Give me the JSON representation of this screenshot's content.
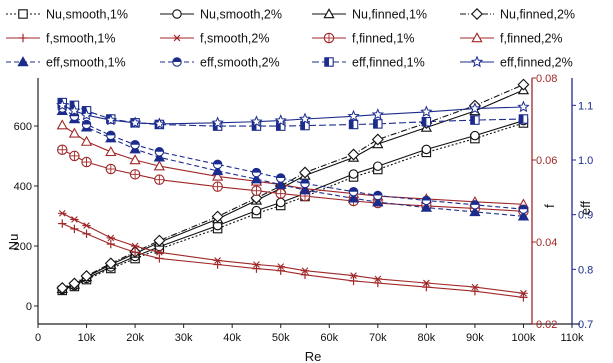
{
  "chart_data": {
    "type": "line",
    "xlabel": "Re",
    "x_ticks": [
      "0",
      "10k",
      "20k",
      "30k",
      "40k",
      "50k",
      "60k",
      "70k",
      "80k",
      "90k",
      "100k",
      "110k"
    ],
    "xlim": [
      0,
      110000
    ],
    "axes": {
      "Nu": {
        "label": "Nu",
        "lim": [
          -60,
          760
        ],
        "ticks": [
          "0",
          "200",
          "400",
          "600"
        ],
        "color": "#222222"
      },
      "f": {
        "label": "f",
        "lim": [
          0.02,
          0.08
        ],
        "ticks": [
          "0.02",
          "0.04",
          "0.06",
          "0.08"
        ],
        "color": "#a02828"
      },
      "eff": {
        "label": "eff",
        "lim": [
          0.7,
          1.15
        ],
        "ticks": [
          "0.7",
          "0.8",
          "0.9",
          "1.0",
          "1.1"
        ],
        "color": "#1c2c8c"
      }
    },
    "legend_position": "top",
    "series": [
      {
        "name": "Nu,smooth,1%",
        "axis": "Nu",
        "color": "#111111",
        "dash": "2,2",
        "marker": "square-open",
        "x": [
          5000,
          7500,
          10000,
          15000,
          20000,
          25000,
          37000,
          45000,
          50000,
          55000,
          65000,
          70000,
          80000,
          90000,
          100000
        ],
        "y": [
          52,
          65,
          88,
          125,
          158,
          190,
          258,
          308,
          335,
          365,
          430,
          455,
          512,
          558,
          610
        ]
      },
      {
        "name": "Nu,smooth,2%",
        "axis": "Nu",
        "color": "#111111",
        "dash": "",
        "marker": "circle-open",
        "x": [
          5000,
          7500,
          10000,
          15000,
          20000,
          25000,
          37000,
          45000,
          50000,
          55000,
          65000,
          70000,
          80000,
          90000,
          100000
        ],
        "y": [
          55,
          68,
          92,
          130,
          165,
          198,
          268,
          318,
          345,
          375,
          440,
          466,
          522,
          568,
          618
        ]
      },
      {
        "name": "Nu,finned,1%",
        "axis": "Nu",
        "color": "#111111",
        "dash": "",
        "marker": "triangle-open",
        "x": [
          5000,
          7500,
          10000,
          15000,
          20000,
          25000,
          37000,
          45000,
          50000,
          55000,
          65000,
          70000,
          80000,
          90000,
          100000
        ],
        "y": [
          58,
          72,
          97,
          138,
          175,
          212,
          290,
          352,
          392,
          435,
          495,
          540,
          595,
          650,
          720
        ]
      },
      {
        "name": "Nu,finned,2%",
        "axis": "Nu",
        "color": "#111111",
        "dash": "6,2,1,2",
        "marker": "diamond-open",
        "x": [
          5000,
          7500,
          10000,
          15000,
          20000,
          25000,
          37000,
          45000,
          50000,
          55000,
          65000,
          70000,
          80000,
          90000,
          100000
        ],
        "y": [
          60,
          75,
          100,
          142,
          180,
          218,
          298,
          360,
          400,
          445,
          505,
          555,
          610,
          668,
          738
        ]
      },
      {
        "name": "f,smooth,1%",
        "axis": "f",
        "color": "#a02828",
        "dash": "",
        "marker": "plus",
        "x": [
          5000,
          7500,
          10000,
          15000,
          20000,
          25000,
          37000,
          45000,
          50000,
          55000,
          65000,
          70000,
          80000,
          90000,
          100000
        ],
        "y": [
          0.0445,
          0.0432,
          0.042,
          0.0395,
          0.0375,
          0.036,
          0.0345,
          0.0335,
          0.033,
          0.032,
          0.0305,
          0.03,
          0.029,
          0.028,
          0.0265
        ]
      },
      {
        "name": "f,smooth,2%",
        "axis": "f",
        "color": "#a02828",
        "dash": "",
        "marker": "asterisk",
        "x": [
          5000,
          7500,
          10000,
          15000,
          20000,
          25000,
          37000,
          45000,
          50000,
          55000,
          65000,
          70000,
          80000,
          90000,
          100000
        ],
        "y": [
          0.047,
          0.0455,
          0.044,
          0.041,
          0.039,
          0.0375,
          0.0355,
          0.0345,
          0.034,
          0.033,
          0.0318,
          0.031,
          0.03,
          0.029,
          0.0275
        ]
      },
      {
        "name": "f,finned,1%",
        "axis": "f",
        "color": "#a02828",
        "dash": "",
        "marker": "circle-plus",
        "x": [
          5000,
          7500,
          10000,
          15000,
          20000,
          25000,
          37000,
          45000,
          50000,
          55000,
          65000,
          70000,
          80000,
          90000,
          100000
        ],
        "y": [
          0.0625,
          0.061,
          0.0595,
          0.0578,
          0.0565,
          0.0552,
          0.0535,
          0.0525,
          0.0518,
          0.0512,
          0.05,
          0.0495,
          0.0488,
          0.0482,
          0.0475
        ]
      },
      {
        "name": "f,finned,2%",
        "axis": "f",
        "color": "#a02828",
        "dash": "",
        "marker": "triangle-open",
        "x": [
          5000,
          7500,
          10000,
          15000,
          20000,
          25000,
          37000,
          45000,
          50000,
          55000,
          65000,
          70000,
          80000,
          90000,
          100000
        ],
        "y": [
          0.0685,
          0.0665,
          0.0645,
          0.062,
          0.06,
          0.0585,
          0.056,
          0.0548,
          0.054,
          0.053,
          0.0518,
          0.0512,
          0.0505,
          0.0498,
          0.0492
        ]
      },
      {
        "name": "eff,smooth,1%",
        "axis": "eff",
        "color": "#1c2c8c",
        "dash": "5,3",
        "marker": "triangle-filled",
        "x": [
          5000,
          7500,
          10000,
          15000,
          20000,
          25000,
          37000,
          45000,
          50000,
          55000,
          65000,
          70000,
          80000,
          90000,
          100000
        ],
        "y": [
          1.09,
          1.075,
          1.06,
          1.04,
          1.02,
          1.005,
          0.98,
          0.965,
          0.955,
          0.945,
          0.93,
          0.923,
          0.913,
          0.905,
          0.897
        ]
      },
      {
        "name": "eff,smooth,2%",
        "axis": "eff",
        "color": "#1c2c8c",
        "dash": "5,3",
        "marker": "circle-half",
        "x": [
          5000,
          7500,
          10000,
          15000,
          20000,
          25000,
          37000,
          45000,
          50000,
          55000,
          65000,
          70000,
          80000,
          90000,
          100000
        ],
        "y": [
          1.095,
          1.08,
          1.065,
          1.045,
          1.028,
          1.015,
          0.992,
          0.977,
          0.967,
          0.957,
          0.942,
          0.935,
          0.926,
          0.918,
          0.91
        ]
      },
      {
        "name": "eff,finned,1%",
        "axis": "eff",
        "color": "#1c2c8c",
        "dash": "7,3",
        "marker": "square-half",
        "x": [
          5000,
          7500,
          10000,
          15000,
          20000,
          25000,
          37000,
          45000,
          50000,
          55000,
          65000,
          70000,
          80000,
          90000,
          100000
        ],
        "y": [
          1.105,
          1.1,
          1.09,
          1.075,
          1.068,
          1.065,
          1.062,
          1.062,
          1.062,
          1.063,
          1.065,
          1.066,
          1.07,
          1.073,
          1.075
        ]
      },
      {
        "name": "eff,finned,2%",
        "axis": "eff",
        "color": "#1c2c8c",
        "dash": "",
        "marker": "star-open",
        "x": [
          5000,
          7500,
          10000,
          15000,
          20000,
          25000,
          37000,
          45000,
          50000,
          55000,
          65000,
          70000,
          80000,
          90000,
          100000
        ],
        "y": [
          1.1,
          1.09,
          1.082,
          1.073,
          1.068,
          1.066,
          1.068,
          1.07,
          1.072,
          1.075,
          1.08,
          1.083,
          1.088,
          1.094,
          1.097
        ]
      }
    ]
  }
}
